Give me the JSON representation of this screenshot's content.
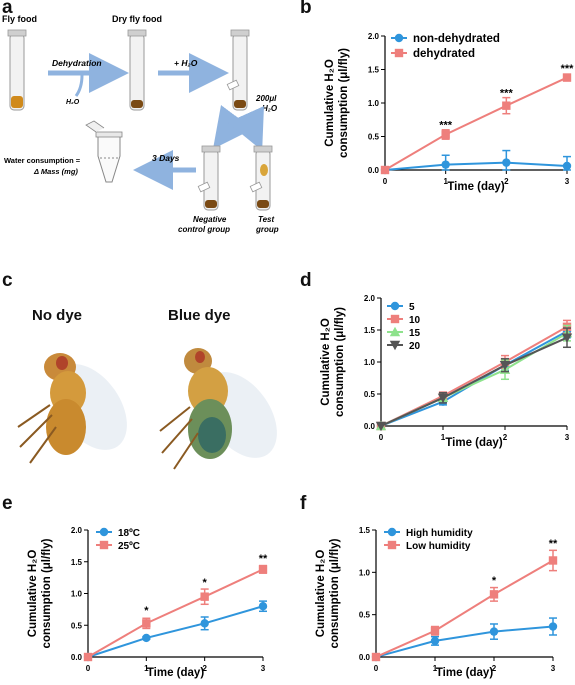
{
  "panel_labels": {
    "a": "a",
    "b": "b",
    "c": "c",
    "d": "d",
    "e": "e",
    "f": "f"
  },
  "schematic": {
    "fly_food": "Fly food",
    "dry_fly_food": "Dry fly food",
    "dehydration": "Dehydration",
    "h2o_small": "H₂O",
    "plus_h2o": "+ H₂O",
    "volume_line1": "200μl",
    "volume_line2": "H₂O",
    "three_days": "3 Days",
    "water_consumption_line1": "Water consumption =",
    "water_consumption_line2": "Δ Mass (mg)",
    "negative_line1": "Negative",
    "negative_line2": "control group",
    "test_line1": "Test",
    "test_line2": "group"
  },
  "photos": {
    "no_dye": "No dye",
    "blue_dye": "Blue dye"
  },
  "colors": {
    "blue": "#2f95dc",
    "pink": "#ee7f7c",
    "green": "#8ee28c",
    "gray": "#555555"
  },
  "chart_data": [
    {
      "id": "b",
      "type": "line",
      "x": [
        0,
        1,
        2,
        3
      ],
      "xlabel": "Time (day)",
      "ylabel_line1": "Cumulative H₂O",
      "ylabel_line2": "consumption (μl/fly)",
      "ylim": [
        0,
        2.0
      ],
      "yticks": [
        0.0,
        0.5,
        1.0,
        1.5,
        2.0
      ],
      "ytick_labels": [
        "0.0",
        "0.5",
        "1.0",
        "1.5",
        "2.0"
      ],
      "xtick_labels": [
        "0",
        "1",
        "2",
        "3"
      ],
      "legend": "top-left",
      "series": [
        {
          "name": "non-dehydrated",
          "color": "#2f95dc",
          "marker": "circle",
          "values": [
            0,
            0.08,
            0.11,
            0.06
          ],
          "errors": [
            0,
            0.14,
            0.18,
            0.14
          ]
        },
        {
          "name": "dehydrated",
          "color": "#ee7f7c",
          "marker": "square",
          "values": [
            0,
            0.53,
            0.96,
            1.38
          ],
          "errors": [
            0,
            0.07,
            0.12,
            0.05
          ]
        }
      ],
      "annotations": [
        {
          "x": 1,
          "y": 0.62,
          "text": "***"
        },
        {
          "x": 2,
          "y": 1.1,
          "text": "***"
        },
        {
          "x": 3,
          "y": 1.46,
          "text": "***"
        }
      ]
    },
    {
      "id": "d",
      "type": "line",
      "x": [
        0,
        1,
        2,
        3
      ],
      "xlabel": "Time (day)",
      "ylabel_line1": "Cumulative H₂O",
      "ylabel_line2": "consumption (μl/fly)",
      "ylim": [
        0,
        2.0
      ],
      "yticks": [
        0.0,
        0.5,
        1.0,
        1.5,
        2.0
      ],
      "ytick_labels": [
        "0.0",
        "0.5",
        "1.0",
        "1.5",
        "2.0"
      ],
      "xtick_labels": [
        "0",
        "1",
        "2",
        "3"
      ],
      "legend": "top-left",
      "series": [
        {
          "name": "5",
          "color": "#2f95dc",
          "marker": "circle",
          "values": [
            0,
            0.38,
            0.95,
            1.48
          ],
          "errors": [
            0,
            0.05,
            0.08,
            0.1
          ]
        },
        {
          "name": "10",
          "color": "#ee7f7c",
          "marker": "square",
          "values": [
            0,
            0.47,
            1.0,
            1.55
          ],
          "errors": [
            0,
            0.06,
            0.1,
            0.1
          ]
        },
        {
          "name": "15",
          "color": "#8ee28c",
          "marker": "triangle-up",
          "values": [
            0,
            0.44,
            0.88,
            1.45
          ],
          "errors": [
            0,
            0.05,
            0.15,
            0.12
          ]
        },
        {
          "name": "20",
          "color": "#555555",
          "marker": "triangle-down",
          "values": [
            0,
            0.44,
            0.95,
            1.38
          ],
          "errors": [
            0,
            0.08,
            0.1,
            0.15
          ]
        }
      ]
    },
    {
      "id": "e",
      "type": "line",
      "x": [
        0,
        1,
        2,
        3
      ],
      "xlabel": "Time (day)",
      "ylabel_line1": "Cumulative H₂O",
      "ylabel_line2": "consumption (μl/fly)",
      "ylim": [
        0,
        2.0
      ],
      "yticks": [
        0.0,
        0.5,
        1.0,
        1.5,
        2.0
      ],
      "ytick_labels": [
        "0.0",
        "0.5",
        "1.0",
        "1.5",
        "2.0"
      ],
      "xtick_labels": [
        "0",
        "1",
        "2",
        "3"
      ],
      "legend": "top-left",
      "series": [
        {
          "name": "18ºC",
          "color": "#2f95dc",
          "marker": "circle",
          "values": [
            0,
            0.3,
            0.53,
            0.8
          ],
          "errors": [
            0,
            0.02,
            0.1,
            0.08
          ]
        },
        {
          "name": "25ºC",
          "color": "#ee7f7c",
          "marker": "square",
          "values": [
            0,
            0.53,
            0.95,
            1.38
          ],
          "errors": [
            0,
            0.08,
            0.12,
            0.06
          ]
        }
      ],
      "annotations": [
        {
          "x": 1,
          "y": 0.68,
          "text": "*"
        },
        {
          "x": 2,
          "y": 1.12,
          "text": "*"
        },
        {
          "x": 3,
          "y": 1.5,
          "text": "**"
        }
      ]
    },
    {
      "id": "f",
      "type": "line",
      "x": [
        0,
        1,
        2,
        3
      ],
      "xlabel": "Time (day)",
      "ylabel_line1": "Cumulative H₂O",
      "ylabel_line2": "consumption (μl/fly)",
      "ylim": [
        0,
        1.5
      ],
      "yticks": [
        0.0,
        0.5,
        1.0,
        1.5
      ],
      "ytick_labels": [
        "0.0",
        "0.5",
        "1.0",
        "1.5"
      ],
      "xtick_labels": [
        "0",
        "1",
        "2",
        "3"
      ],
      "legend": "top-left",
      "series": [
        {
          "name": "High humidity",
          "color": "#2f95dc",
          "marker": "circle",
          "values": [
            0,
            0.19,
            0.3,
            0.36
          ],
          "errors": [
            0,
            0.05,
            0.09,
            0.1
          ]
        },
        {
          "name": "Low humidity",
          "color": "#ee7f7c",
          "marker": "square",
          "values": [
            0,
            0.31,
            0.74,
            1.14
          ],
          "errors": [
            0,
            0.05,
            0.08,
            0.12
          ]
        }
      ],
      "annotations": [
        {
          "x": 2,
          "y": 0.86,
          "text": "*"
        },
        {
          "x": 3,
          "y": 1.3,
          "text": "**"
        }
      ]
    }
  ]
}
